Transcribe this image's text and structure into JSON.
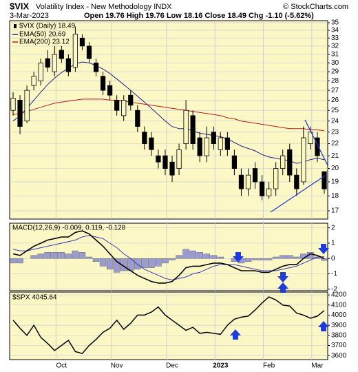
{
  "header": {
    "symbol": "$VIX",
    "name": "Volatility Index - New Methodology INDX",
    "credit": "© StockCharts.com",
    "date": "3-Mar-2023",
    "quote": "Open 19.76 High 19.76 Low 18.16 Close 18.49 Chg -1.10 (-5.62%)"
  },
  "chart_data": [
    {
      "type": "candlestick",
      "name": "$VIX (Daily) 18.49",
      "log_scale": true,
      "grid": true,
      "categories": [
        null,
        null,
        null,
        null,
        null,
        null,
        null,
        "Oct",
        null,
        null,
        null,
        null,
        null,
        null,
        null,
        "Nov",
        null,
        null,
        null,
        null,
        null,
        null,
        null,
        "Dec",
        null,
        null,
        null,
        null,
        null,
        null,
        "2023",
        null,
        null,
        null,
        null,
        null,
        null,
        "Feb",
        null,
        null,
        null,
        null,
        null,
        null,
        "Mar",
        null
      ],
      "open": [
        25.0,
        26.0,
        24.0,
        27.5,
        28.0,
        30.5,
        29.0,
        31.5,
        30.5,
        29.5,
        33.0,
        32.0,
        30.0,
        28.5,
        27.5,
        26.0,
        24.5,
        26.5,
        25.0,
        23.0,
        22.5,
        21.0,
        21.0,
        20.5,
        20.0,
        22.0,
        24.5,
        22.5,
        21.0,
        23.0,
        21.5,
        22.5,
        21.0,
        19.5,
        18.5,
        20.0,
        19.0,
        18.0,
        18.5,
        20.0,
        21.5,
        19.5,
        19.0,
        22.0,
        22.5,
        19.76
      ],
      "high": [
        26.8,
        26.5,
        27.5,
        29.0,
        30.5,
        31.5,
        32.0,
        32.0,
        31.0,
        34.5,
        33.5,
        32.5,
        30.5,
        29.0,
        28.0,
        26.5,
        26.5,
        27.0,
        25.5,
        23.5,
        23.0,
        21.5,
        21.5,
        21.0,
        22.0,
        26.0,
        25.0,
        23.0,
        23.5,
        23.5,
        23.0,
        23.0,
        21.5,
        20.0,
        20.0,
        20.5,
        19.5,
        19.0,
        20.5,
        21.5,
        22.0,
        20.0,
        23.5,
        23.5,
        23.0,
        19.76
      ],
      "low": [
        24.5,
        22.8,
        23.8,
        27.0,
        27.5,
        29.0,
        28.5,
        30.0,
        28.5,
        29.0,
        31.5,
        30.0,
        28.5,
        26.5,
        26.0,
        24.5,
        24.0,
        25.0,
        23.0,
        21.5,
        21.0,
        20.0,
        19.5,
        19.0,
        19.5,
        21.5,
        21.5,
        20.5,
        20.5,
        21.5,
        21.0,
        21.0,
        19.5,
        18.0,
        18.0,
        18.5,
        17.7,
        17.8,
        18.0,
        19.5,
        19.0,
        18.0,
        18.8,
        21.5,
        20.5,
        18.16
      ],
      "close": [
        26.2,
        23.5,
        27.0,
        28.5,
        30.0,
        29.5,
        31.0,
        30.5,
        29.0,
        33.5,
        32.0,
        30.5,
        29.0,
        27.0,
        26.5,
        25.0,
        26.0,
        25.5,
        23.5,
        22.0,
        21.5,
        20.5,
        20.0,
        19.5,
        21.5,
        25.0,
        22.0,
        21.0,
        22.5,
        22.0,
        22.5,
        21.5,
        20.0,
        18.5,
        19.5,
        19.0,
        18.0,
        18.5,
        20.0,
        21.0,
        19.5,
        18.5,
        22.5,
        23.0,
        21.0,
        18.49
      ],
      "series": [
        {
          "name": "EMA(50) 20.69",
          "color": "#23238c",
          "values": [
            24.0,
            24.5,
            25.2,
            26.0,
            26.8,
            27.6,
            28.3,
            28.9,
            29.4,
            29.9,
            30.1,
            30.0,
            29.7,
            29.3,
            28.8,
            28.2,
            27.6,
            27.0,
            26.4,
            25.8,
            25.2,
            24.6,
            24.0,
            23.5,
            23.3,
            23.3,
            23.1,
            22.9,
            22.8,
            22.7,
            22.6,
            22.4,
            22.1,
            21.8,
            21.6,
            21.4,
            21.1,
            20.9,
            20.8,
            20.7,
            20.6,
            20.4,
            20.5,
            20.7,
            20.8,
            20.69
          ]
        },
        {
          "name": "EMA(200) 23.12",
          "color": "#b01c1c",
          "values": [
            24.6,
            24.7,
            24.9,
            25.1,
            25.3,
            25.5,
            25.7,
            25.8,
            25.9,
            26.0,
            26.1,
            26.1,
            26.1,
            26.1,
            26.0,
            26.0,
            25.9,
            25.8,
            25.7,
            25.6,
            25.5,
            25.4,
            25.3,
            25.2,
            25.1,
            25.0,
            24.9,
            24.8,
            24.7,
            24.6,
            24.5,
            24.3,
            24.2,
            24.0,
            23.9,
            23.8,
            23.7,
            23.6,
            23.5,
            23.4,
            23.3,
            23.3,
            23.3,
            23.2,
            23.2,
            23.12
          ]
        }
      ],
      "ylim": [
        16.47,
        35.28
      ],
      "yticks": [
        17,
        18,
        19,
        20,
        21,
        22,
        23,
        24,
        25,
        26,
        27,
        28,
        29,
        30,
        31,
        32,
        33,
        34,
        35
      ]
    },
    {
      "type": "macd",
      "label": "MACD(12,26,9) -0.009, 0.119, -0.128",
      "grid": true,
      "macd": {
        "color": "#000000",
        "values": [
          0.3,
          0.2,
          0.5,
          0.8,
          1.0,
          1.2,
          1.3,
          1.4,
          1.4,
          1.7,
          1.8,
          1.6,
          1.2,
          0.8,
          0.3,
          -0.2,
          -0.5,
          -0.8,
          -1.1,
          -1.3,
          -1.5,
          -1.6,
          -1.6,
          -1.5,
          -1.1,
          -0.6,
          -0.5,
          -0.5,
          -0.4,
          -0.3,
          -0.3,
          -0.4,
          -0.6,
          -0.8,
          -0.8,
          -0.8,
          -0.9,
          -0.9,
          -0.7,
          -0.5,
          -0.4,
          -0.4,
          0.0,
          0.3,
          0.2,
          -0.009
        ]
      },
      "signal": {
        "color": "#3a3ab4",
        "values": [
          0.6,
          0.5,
          0.5,
          0.6,
          0.7,
          0.8,
          0.9,
          1.0,
          1.1,
          1.2,
          1.4,
          1.5,
          1.4,
          1.3,
          1.0,
          0.7,
          0.3,
          0.0,
          -0.4,
          -0.7,
          -0.9,
          -1.1,
          -1.3,
          -1.4,
          -1.3,
          -1.2,
          -1.0,
          -0.9,
          -0.7,
          -0.5,
          -0.4,
          -0.4,
          -0.4,
          -0.5,
          -0.6,
          -0.7,
          -0.8,
          -0.8,
          -0.8,
          -0.7,
          -0.6,
          -0.5,
          -0.3,
          -0.1,
          0.1,
          0.119
        ]
      },
      "histogram": {
        "color": "#9a9ad4",
        "values": [
          -0.3,
          -0.3,
          0,
          0.2,
          0.3,
          0.4,
          0.4,
          0.4,
          0.3,
          0.5,
          0.4,
          0.1,
          -0.2,
          -0.5,
          -0.7,
          -0.9,
          -0.8,
          -0.8,
          -0.7,
          -0.6,
          -0.6,
          -0.5,
          -0.3,
          -0.1,
          0.2,
          0.6,
          0.5,
          0.4,
          0.3,
          0.2,
          0.1,
          0,
          -0.2,
          -0.3,
          -0.2,
          -0.1,
          -0.1,
          -0.1,
          0.1,
          0.2,
          0.2,
          0.1,
          0.3,
          0.4,
          0.1,
          -0.128
        ]
      },
      "ylim": [
        -2.1,
        2.3
      ],
      "yticks": [
        2,
        1,
        0,
        -1,
        -2
      ]
    },
    {
      "type": "line",
      "label": "$SPX 4045.64",
      "color": "#000000",
      "grid": true,
      "values": [
        3950,
        3870,
        3800,
        3900,
        3780,
        3720,
        3650,
        3700,
        3750,
        3640,
        3620,
        3700,
        3760,
        3830,
        3870,
        3950,
        3860,
        3920,
        4000,
        4000,
        4030,
        4080,
        4000,
        3950,
        3900,
        3850,
        3880,
        3820,
        3830,
        3820,
        3810,
        3900,
        3960,
        3980,
        3990,
        4050,
        4120,
        4180,
        4150,
        4100,
        4090,
        4020,
        4000,
        3970,
        3990,
        4045.64
      ],
      "ylim": [
        3560,
        4228
      ],
      "yticks": [
        4200,
        4100,
        4000,
        3900,
        3800,
        3700,
        3600
      ]
    }
  ]
}
